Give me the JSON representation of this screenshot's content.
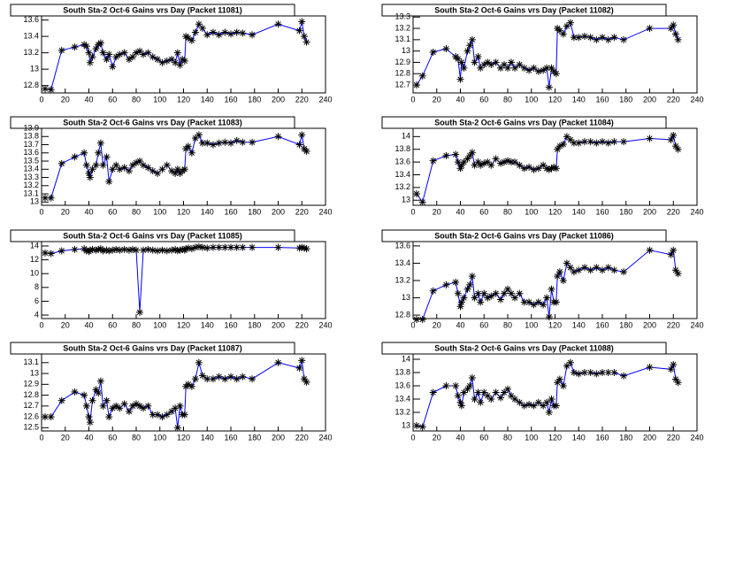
{
  "chart_data": [
    {
      "type": "line",
      "title": "South Sta-2 Oct-6 Gains vrs Day (Packet 11081)",
      "color": "#0000ff",
      "marker_color": "#000000",
      "x": [
        3,
        8,
        17,
        28,
        36,
        38,
        40,
        41,
        43,
        46,
        48,
        50,
        52,
        55,
        57,
        60,
        63,
        66,
        70,
        74,
        77,
        80,
        83,
        86,
        90,
        94,
        98,
        102,
        106,
        110,
        113,
        115,
        117,
        119,
        121,
        122,
        124,
        127,
        130,
        133,
        136,
        140,
        145,
        150,
        155,
        160,
        165,
        170,
        178,
        200,
        218,
        220,
        222,
        224
      ],
      "values": [
        12.76,
        12.75,
        13.23,
        13.27,
        13.3,
        13.28,
        13.2,
        13.08,
        13.15,
        13.25,
        13.3,
        13.32,
        13.2,
        13.12,
        13.18,
        13.03,
        13.15,
        13.18,
        13.2,
        13.12,
        13.15,
        13.2,
        13.22,
        13.18,
        13.2,
        13.15,
        13.12,
        13.08,
        13.1,
        13.12,
        13.08,
        13.2,
        13.05,
        13.12,
        13.1,
        13.4,
        13.38,
        13.35,
        13.45,
        13.55,
        13.5,
        13.42,
        13.45,
        13.42,
        13.45,
        13.43,
        13.45,
        13.44,
        13.42,
        13.55,
        13.47,
        13.58,
        13.4,
        13.33
      ],
      "xlim": [
        0,
        240
      ],
      "xticks": [
        0,
        20,
        40,
        60,
        80,
        100,
        120,
        140,
        160,
        180,
        200,
        220,
        240
      ],
      "ylim": [
        12.71,
        13.65
      ],
      "yticks": [
        12.8,
        13,
        13.2,
        13.4,
        13.6
      ]
    },
    {
      "type": "line",
      "title": "South Sta-2 Oct-6 Gains vrs Day (Packet 11082)",
      "color": "#0000ff",
      "marker_color": "#000000",
      "x": [
        3,
        8,
        17,
        28,
        36,
        38,
        40,
        41,
        43,
        46,
        48,
        50,
        52,
        55,
        57,
        60,
        63,
        66,
        70,
        74,
        77,
        80,
        83,
        86,
        90,
        94,
        98,
        102,
        106,
        110,
        113,
        115,
        117,
        119,
        121,
        122,
        124,
        127,
        130,
        133,
        136,
        140,
        145,
        150,
        155,
        160,
        165,
        170,
        178,
        200,
        218,
        220,
        222,
        224
      ],
      "values": [
        12.7,
        12.78,
        12.99,
        13.02,
        12.95,
        12.93,
        12.75,
        12.9,
        12.85,
        13.0,
        13.05,
        13.1,
        12.9,
        12.95,
        12.85,
        12.88,
        12.9,
        12.88,
        12.9,
        12.85,
        12.88,
        12.85,
        12.9,
        12.85,
        12.88,
        12.85,
        12.83,
        12.85,
        12.82,
        12.83,
        12.85,
        12.68,
        12.85,
        12.82,
        12.8,
        13.2,
        13.18,
        13.15,
        13.22,
        13.25,
        13.12,
        13.12,
        13.13,
        13.12,
        13.1,
        13.12,
        13.1,
        13.12,
        13.1,
        13.2,
        13.2,
        13.23,
        13.15,
        13.1
      ],
      "xlim": [
        0,
        240
      ],
      "xticks": [
        0,
        20,
        40,
        60,
        80,
        100,
        120,
        140,
        160,
        180,
        200,
        220,
        240
      ],
      "ylim": [
        12.63,
        13.31
      ],
      "yticks": [
        12.7,
        12.8,
        12.9,
        13,
        13.1,
        13.2,
        13.3
      ]
    },
    {
      "type": "line",
      "title": "South Sta-2 Oct-6 Gains vrs Day (Packet 11083)",
      "color": "#0000ff",
      "marker_color": "#000000",
      "x": [
        3,
        8,
        17,
        28,
        36,
        38,
        40,
        41,
        43,
        46,
        48,
        50,
        52,
        55,
        57,
        60,
        63,
        66,
        70,
        74,
        77,
        80,
        83,
        86,
        90,
        94,
        98,
        102,
        106,
        110,
        113,
        115,
        117,
        119,
        121,
        122,
        124,
        127,
        130,
        133,
        136,
        140,
        145,
        150,
        155,
        160,
        165,
        170,
        178,
        200,
        218,
        220,
        222,
        224
      ],
      "values": [
        13.05,
        13.05,
        13.47,
        13.55,
        13.6,
        13.45,
        13.35,
        13.3,
        13.4,
        13.45,
        13.6,
        13.72,
        13.45,
        13.55,
        13.25,
        13.4,
        13.45,
        13.4,
        13.42,
        13.38,
        13.45,
        13.48,
        13.5,
        13.45,
        13.42,
        13.38,
        13.35,
        13.4,
        13.45,
        13.38,
        13.35,
        13.4,
        13.35,
        13.38,
        13.4,
        13.65,
        13.68,
        13.6,
        13.78,
        13.82,
        13.72,
        13.72,
        13.7,
        13.72,
        13.73,
        13.72,
        13.75,
        13.73,
        13.73,
        13.8,
        13.7,
        13.82,
        13.65,
        13.62
      ],
      "xlim": [
        0,
        240
      ],
      "xticks": [
        0,
        20,
        40,
        60,
        80,
        100,
        120,
        140,
        160,
        180,
        200,
        220,
        240
      ],
      "ylim": [
        12.96,
        13.9
      ],
      "yticks": [
        13,
        13.1,
        13.2,
        13.3,
        13.4,
        13.5,
        13.6,
        13.7,
        13.8,
        13.9
      ]
    },
    {
      "type": "line",
      "title": "South Sta-2 Oct-6 Gains vrs Day (Packet 11084)",
      "color": "#0000ff",
      "marker_color": "#000000",
      "x": [
        3,
        8,
        17,
        28,
        36,
        38,
        40,
        41,
        43,
        46,
        48,
        50,
        52,
        55,
        57,
        60,
        63,
        66,
        70,
        74,
        77,
        80,
        83,
        86,
        90,
        94,
        98,
        102,
        106,
        110,
        113,
        115,
        117,
        119,
        121,
        122,
        124,
        127,
        130,
        133,
        136,
        140,
        145,
        150,
        155,
        160,
        165,
        170,
        178,
        200,
        218,
        220,
        222,
        224
      ],
      "values": [
        13.1,
        12.97,
        13.62,
        13.7,
        13.72,
        13.6,
        13.5,
        13.55,
        13.6,
        13.65,
        13.7,
        13.75,
        13.55,
        13.6,
        13.55,
        13.58,
        13.6,
        13.55,
        13.65,
        13.58,
        13.6,
        13.62,
        13.6,
        13.6,
        13.55,
        13.5,
        13.52,
        13.48,
        13.5,
        13.55,
        13.5,
        13.48,
        13.5,
        13.52,
        13.5,
        13.8,
        13.85,
        13.88,
        14.0,
        13.95,
        13.9,
        13.9,
        13.92,
        13.92,
        13.9,
        13.92,
        13.9,
        13.92,
        13.92,
        13.97,
        13.95,
        14.02,
        13.85,
        13.8
      ],
      "xlim": [
        0,
        240
      ],
      "xticks": [
        0,
        20,
        40,
        60,
        80,
        100,
        120,
        140,
        160,
        180,
        200,
        220,
        240
      ],
      "ylim": [
        12.92,
        14.13
      ],
      "yticks": [
        13,
        13.2,
        13.4,
        13.6,
        13.8,
        14
      ]
    },
    {
      "type": "line",
      "title": "South Sta-2 Oct-6 Gains vrs Day (Packet 11085)",
      "color": "#0000ff",
      "marker_color": "#000000",
      "x": [
        3,
        8,
        17,
        28,
        36,
        38,
        40,
        41,
        43,
        46,
        48,
        50,
        52,
        55,
        57,
        60,
        63,
        66,
        70,
        74,
        77,
        80,
        83,
        86,
        90,
        94,
        98,
        102,
        106,
        110,
        113,
        115,
        117,
        119,
        121,
        122,
        124,
        127,
        130,
        133,
        136,
        140,
        145,
        150,
        155,
        160,
        165,
        170,
        178,
        200,
        218,
        220,
        222,
        224
      ],
      "values": [
        13.0,
        12.9,
        13.3,
        13.5,
        13.6,
        13.3,
        13.2,
        13.4,
        13.5,
        13.4,
        13.5,
        13.6,
        13.3,
        13.4,
        13.3,
        13.4,
        13.5,
        13.4,
        13.5,
        13.4,
        13.5,
        13.4,
        4.4,
        13.4,
        13.5,
        13.4,
        13.3,
        13.4,
        13.3,
        13.4,
        13.5,
        13.3,
        13.4,
        13.5,
        13.4,
        13.6,
        13.7,
        13.6,
        13.8,
        13.9,
        13.8,
        13.7,
        13.8,
        13.8,
        13.8,
        13.8,
        13.8,
        13.8,
        13.8,
        13.8,
        13.7,
        13.8,
        13.7,
        13.6
      ],
      "xlim": [
        0,
        240
      ],
      "xticks": [
        0,
        20,
        40,
        60,
        80,
        100,
        120,
        140,
        160,
        180,
        200,
        220,
        240
      ],
      "ylim": [
        3.49,
        14.64
      ],
      "yticks": [
        4,
        6,
        8,
        10,
        12,
        14
      ]
    },
    {
      "type": "line",
      "title": "South Sta-2 Oct-6 Gains vrs Day (Packet 11086)",
      "color": "#0000ff",
      "marker_color": "#000000",
      "x": [
        3,
        8,
        17,
        28,
        36,
        38,
        40,
        41,
        43,
        46,
        48,
        50,
        52,
        55,
        57,
        60,
        63,
        66,
        70,
        74,
        77,
        80,
        83,
        86,
        90,
        94,
        98,
        102,
        106,
        110,
        113,
        115,
        117,
        119,
        121,
        122,
        124,
        127,
        130,
        133,
        136,
        140,
        145,
        150,
        155,
        160,
        165,
        170,
        178,
        200,
        218,
        220,
        222,
        224
      ],
      "values": [
        12.75,
        12.75,
        13.08,
        13.15,
        13.18,
        13.05,
        12.9,
        12.95,
        13.0,
        13.1,
        13.15,
        13.25,
        13.0,
        13.05,
        12.95,
        13.05,
        13.0,
        13.02,
        13.05,
        12.98,
        13.05,
        13.1,
        13.05,
        13.0,
        13.05,
        12.95,
        12.95,
        12.92,
        12.95,
        12.92,
        13.0,
        12.78,
        13.1,
        12.95,
        12.95,
        13.25,
        13.3,
        13.2,
        13.4,
        13.35,
        13.3,
        13.32,
        13.35,
        13.32,
        13.35,
        13.32,
        13.35,
        13.32,
        13.3,
        13.55,
        13.5,
        13.55,
        13.32,
        13.28
      ],
      "xlim": [
        0,
        240
      ],
      "xticks": [
        0,
        20,
        40,
        60,
        80,
        100,
        120,
        140,
        160,
        180,
        200,
        220,
        240
      ],
      "ylim": [
        12.76,
        13.65
      ],
      "yticks": [
        12.8,
        13,
        13.2,
        13.4,
        13.6
      ]
    },
    {
      "type": "line",
      "title": "South Sta-2 Oct-6 Gains vrs Day (Packet 11087)",
      "color": "#0000ff",
      "marker_color": "#000000",
      "x": [
        3,
        8,
        17,
        28,
        36,
        38,
        40,
        41,
        43,
        46,
        48,
        50,
        52,
        55,
        57,
        60,
        63,
        66,
        70,
        74,
        77,
        80,
        83,
        86,
        90,
        94,
        98,
        102,
        106,
        110,
        113,
        115,
        117,
        119,
        121,
        122,
        124,
        127,
        130,
        133,
        136,
        140,
        145,
        150,
        155,
        160,
        165,
        170,
        178,
        200,
        218,
        220,
        222,
        224
      ],
      "values": [
        12.6,
        12.6,
        12.75,
        12.83,
        12.8,
        12.7,
        12.6,
        12.55,
        12.75,
        12.85,
        12.82,
        12.93,
        12.7,
        12.75,
        12.6,
        12.68,
        12.7,
        12.68,
        12.72,
        12.65,
        12.7,
        12.72,
        12.7,
        12.68,
        12.7,
        12.62,
        12.62,
        12.6,
        12.62,
        12.65,
        12.68,
        12.5,
        12.7,
        12.62,
        12.62,
        12.88,
        12.9,
        12.88,
        12.95,
        13.1,
        12.98,
        12.95,
        12.95,
        12.97,
        12.95,
        12.97,
        12.95,
        12.97,
        12.95,
        13.1,
        13.05,
        13.12,
        12.95,
        12.92
      ],
      "xlim": [
        0,
        240
      ],
      "xticks": [
        0,
        20,
        40,
        60,
        80,
        100,
        120,
        140,
        160,
        180,
        200,
        220,
        240
      ],
      "ylim": [
        12.47,
        13.18
      ],
      "yticks": [
        12.5,
        12.6,
        12.7,
        12.8,
        12.9,
        13,
        13.1
      ]
    },
    {
      "type": "line",
      "title": "South Sta-2 Oct-6 Gains vrs Day (Packet 11088)",
      "color": "#0000ff",
      "marker_color": "#000000",
      "x": [
        3,
        8,
        17,
        28,
        36,
        38,
        40,
        41,
        43,
        46,
        48,
        50,
        52,
        55,
        57,
        60,
        63,
        66,
        70,
        74,
        77,
        80,
        83,
        86,
        90,
        94,
        98,
        102,
        106,
        110,
        113,
        115,
        117,
        119,
        121,
        122,
        124,
        127,
        130,
        133,
        136,
        140,
        145,
        150,
        155,
        160,
        165,
        170,
        178,
        200,
        218,
        220,
        222,
        224
      ],
      "values": [
        13.0,
        12.98,
        13.5,
        13.6,
        13.6,
        13.45,
        13.35,
        13.3,
        13.5,
        13.55,
        13.6,
        13.72,
        13.4,
        13.5,
        13.35,
        13.5,
        13.45,
        13.4,
        13.5,
        13.42,
        13.5,
        13.55,
        13.45,
        13.4,
        13.35,
        13.3,
        13.32,
        13.3,
        13.35,
        13.3,
        13.35,
        13.2,
        13.4,
        13.3,
        13.3,
        13.65,
        13.7,
        13.6,
        13.9,
        13.95,
        13.8,
        13.78,
        13.8,
        13.8,
        13.78,
        13.8,
        13.8,
        13.8,
        13.75,
        13.88,
        13.85,
        13.92,
        13.7,
        13.65
      ],
      "xlim": [
        0,
        240
      ],
      "xticks": [
        0,
        20,
        40,
        60,
        80,
        100,
        120,
        140,
        160,
        180,
        200,
        220,
        240
      ],
      "ylim": [
        12.92,
        14.08
      ],
      "yticks": [
        13,
        13.2,
        13.4,
        13.6,
        13.8,
        14
      ]
    }
  ]
}
